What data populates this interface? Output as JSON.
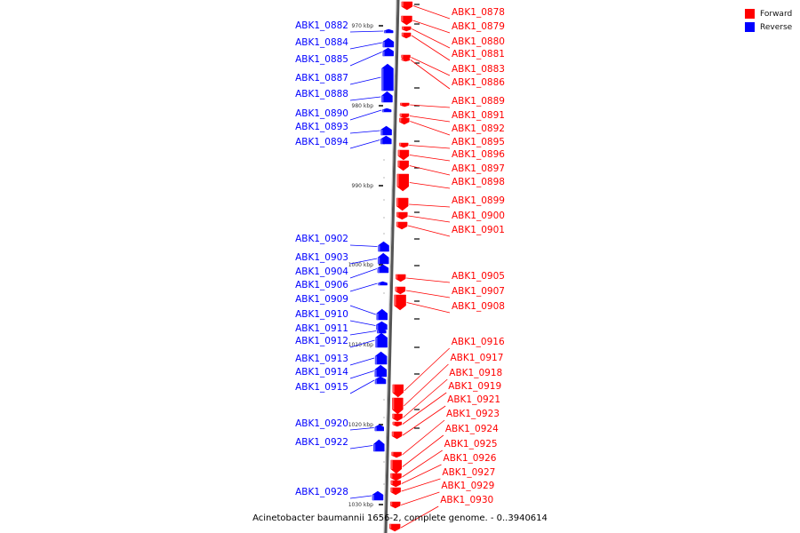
{
  "legend": {
    "forward_label": "Forward",
    "forward_color": "#ff0000",
    "reverse_label": "Reverse",
    "reverse_color": "#0000ff"
  },
  "caption": "Acinetobacter baumannii 1656-2, complete genome. - 0..3940614",
  "ticks": [
    "970 kbp",
    "980 kbp",
    "990 kbp",
    "1000 kbp",
    "1010 kbp",
    "1020 kbp",
    "1030 kbp"
  ],
  "reverse_genes": [
    "ABK1_0882",
    "ABK1_0884",
    "ABK1_0885",
    "ABK1_0887",
    "ABK1_0888",
    "ABK1_0890",
    "ABK1_0893",
    "ABK1_0894",
    "ABK1_0902",
    "ABK1_0903",
    "ABK1_0904",
    "ABK1_0906",
    "ABK1_0909",
    "ABK1_0910",
    "ABK1_0911",
    "ABK1_0912",
    "ABK1_0913",
    "ABK1_0914",
    "ABK1_0915",
    "ABK1_0920",
    "ABK1_0922",
    "ABK1_0928"
  ],
  "forward_genes": [
    "ABK1_0878",
    "ABK1_0879",
    "ABK1_0880",
    "ABK1_0881",
    "ABK1_0883",
    "ABK1_0886",
    "ABK1_0889",
    "ABK1_0891",
    "ABK1_0892",
    "ABK1_0895",
    "ABK1_0896",
    "ABK1_0897",
    "ABK1_0898",
    "ABK1_0899",
    "ABK1_0900",
    "ABK1_0901",
    "ABK1_0905",
    "ABK1_0907",
    "ABK1_0908",
    "ABK1_0916",
    "ABK1_0917",
    "ABK1_0918",
    "ABK1_0919",
    "ABK1_0921",
    "ABK1_0923",
    "ABK1_0924",
    "ABK1_0925",
    "ABK1_0926",
    "ABK1_0927",
    "ABK1_0929",
    "ABK1_0930"
  ]
}
